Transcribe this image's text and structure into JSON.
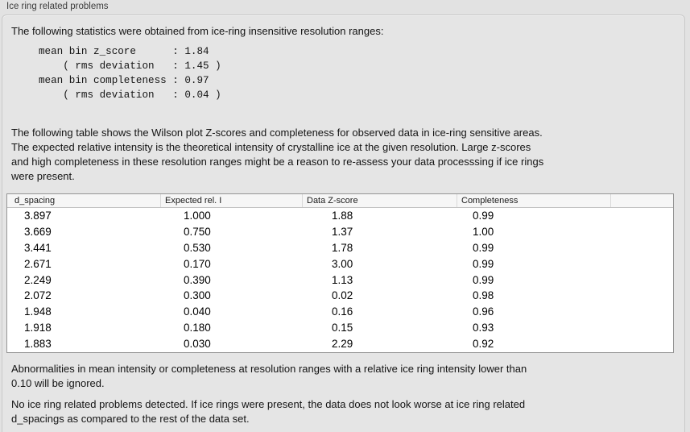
{
  "panel": {
    "title": "Ice ring related problems"
  },
  "intro": {
    "text": "The following statistics were obtained from ice-ring insensitive resolution ranges:"
  },
  "stats_block": {
    "lines": [
      "mean bin z_score      : 1.84",
      "    ( rms deviation   : 1.45 )",
      "mean bin completeness : 0.97",
      "    ( rms deviation   : 0.04 )"
    ]
  },
  "description": {
    "lines": [
      "The following table shows the Wilson plot Z-scores and completeness for observed data in ice-ring sensitive areas.",
      "The expected relative intensity is the theoretical intensity of crystalline ice at the given resolution. Large z-scores",
      "and high completeness in these resolution ranges might be a reason to re-assess your data processsing if ice rings",
      "were present."
    ]
  },
  "table": {
    "columns": [
      "d_spacing",
      "Expected rel. I",
      "Data Z-score",
      "Completeness"
    ],
    "rows": [
      [
        "3.897",
        "1.000",
        "1.88",
        "0.99"
      ],
      [
        "3.669",
        "0.750",
        "1.37",
        "1.00"
      ],
      [
        "3.441",
        "0.530",
        "1.78",
        "0.99"
      ],
      [
        "2.671",
        "0.170",
        "3.00",
        "0.99"
      ],
      [
        "2.249",
        "0.390",
        "1.13",
        "0.99"
      ],
      [
        "2.072",
        "0.300",
        "0.02",
        "0.98"
      ],
      [
        "1.948",
        "0.040",
        "0.16",
        "0.96"
      ],
      [
        "1.918",
        "0.180",
        "0.15",
        "0.93"
      ],
      [
        "1.883",
        "0.030",
        "2.29",
        "0.92"
      ]
    ]
  },
  "note": {
    "lines": [
      "Abnormalities in mean intensity or completeness at resolution ranges with a relative ice ring intensity lower than",
      "0.10 will be ignored."
    ]
  },
  "conclusion": {
    "lines": [
      "No ice ring related problems detected. If ice rings were present, the data does not look worse at ice ring related",
      "d_spacings as compared to the rest of the data set."
    ]
  },
  "colors": {
    "background": "#e2e2e2",
    "panel_background": "#e5e5e5",
    "panel_border": "#c8c8c8",
    "table_border": "#949494",
    "table_header_background": "#f6f6f6",
    "table_body_background": "#ffffff",
    "text": "#141414"
  }
}
